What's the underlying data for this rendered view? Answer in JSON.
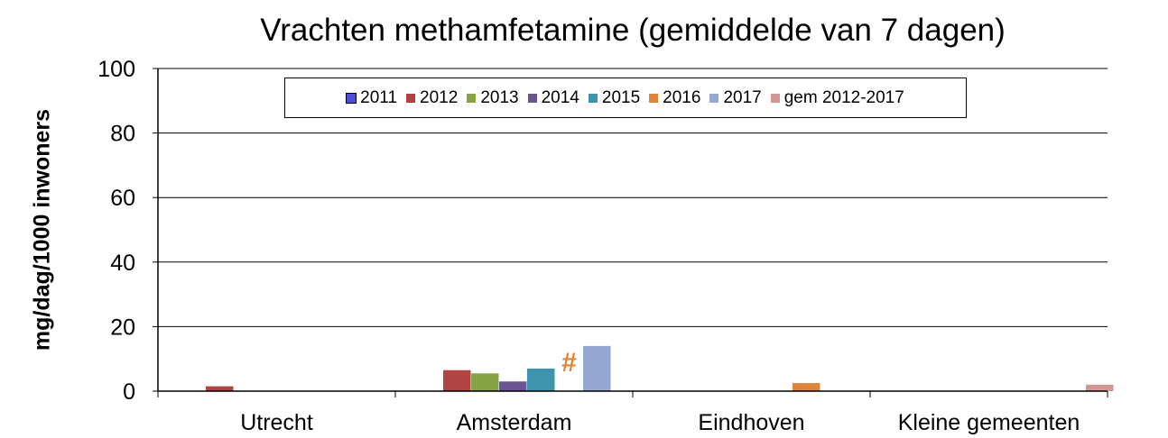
{
  "chart_data": {
    "type": "bar",
    "title": "Vrachten methamfetamine (gemiddelde van 7 dagen)",
    "ylabel": "mg/dag/1000 inwoners",
    "xlabel": "",
    "ylim": [
      0,
      100
    ],
    "yticks": [
      0,
      20,
      40,
      60,
      80,
      100
    ],
    "grid": true,
    "legend_position": "top",
    "categories": [
      "Utrecht",
      "Amsterdam",
      "Eindhoven",
      "Kleine gemeenten"
    ],
    "series": [
      {
        "name": "2011",
        "color": "#4F4FD6",
        "values": [
          null,
          null,
          null,
          null
        ]
      },
      {
        "name": "2012",
        "color": "#B04442",
        "values": [
          1.5,
          6.5,
          null,
          null
        ]
      },
      {
        "name": "2013",
        "color": "#85A343",
        "values": [
          null,
          5.5,
          null,
          null
        ]
      },
      {
        "name": "2014",
        "color": "#6B5591",
        "values": [
          null,
          3.0,
          null,
          null
        ]
      },
      {
        "name": "2015",
        "color": "#3C95AC",
        "values": [
          null,
          7.0,
          null,
          null
        ]
      },
      {
        "name": "2016",
        "color": "#E0843A",
        "values": [
          null,
          null,
          2.5,
          null
        ]
      },
      {
        "name": "2017",
        "color": "#94A9D1",
        "values": [
          null,
          14.0,
          null,
          null
        ]
      },
      {
        "name": "gem 2012-2017",
        "color": "#D49595",
        "values": [
          null,
          null,
          null,
          2.0
        ]
      }
    ],
    "annotations": [
      {
        "text": "#",
        "category": "Amsterdam",
        "series": "2016",
        "color": "#E0843A"
      }
    ]
  }
}
